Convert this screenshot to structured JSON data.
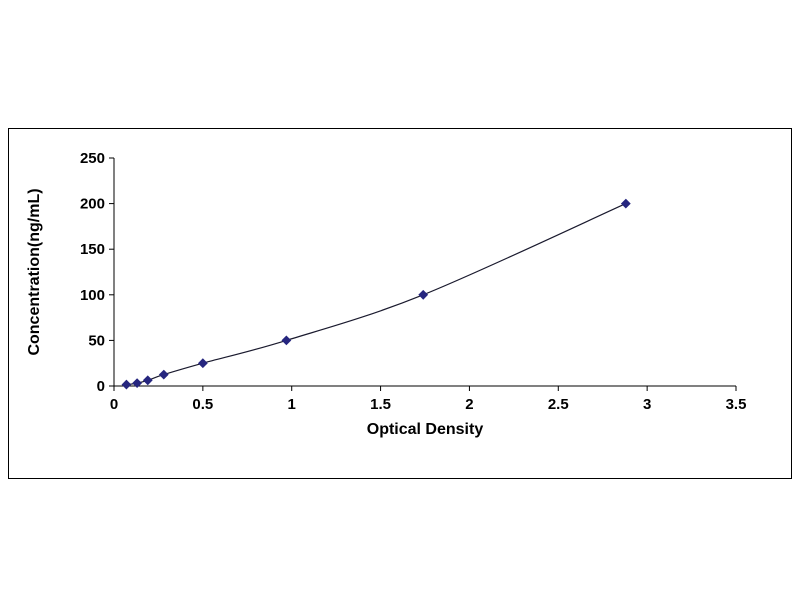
{
  "chart_data": {
    "type": "line",
    "subtype": "scatter-with-smooth-line",
    "title": "",
    "xlabel": "Optical Density",
    "ylabel": "Concentration(ng/mL)",
    "x": [
      0.07,
      0.13,
      0.19,
      0.28,
      0.5,
      0.97,
      1.74,
      2.88
    ],
    "y": [
      1.56,
      3.12,
      6.25,
      12.5,
      25,
      50,
      100,
      200
    ],
    "xlim": [
      0,
      3.5
    ],
    "ylim": [
      0,
      250
    ],
    "x_ticks": [
      "0",
      "0.5",
      "1",
      "1.5",
      "2",
      "2.5",
      "3",
      "3.5"
    ],
    "y_ticks": [
      "0",
      "50",
      "100",
      "150",
      "200",
      "250"
    ],
    "grid": false,
    "legend": false,
    "marker": "diamond",
    "marker_color": "#26267f",
    "line_color": "#1a1a2e",
    "axis_color": "#000000",
    "frame_border_color": "#000000",
    "background_color": "#ffffff"
  }
}
